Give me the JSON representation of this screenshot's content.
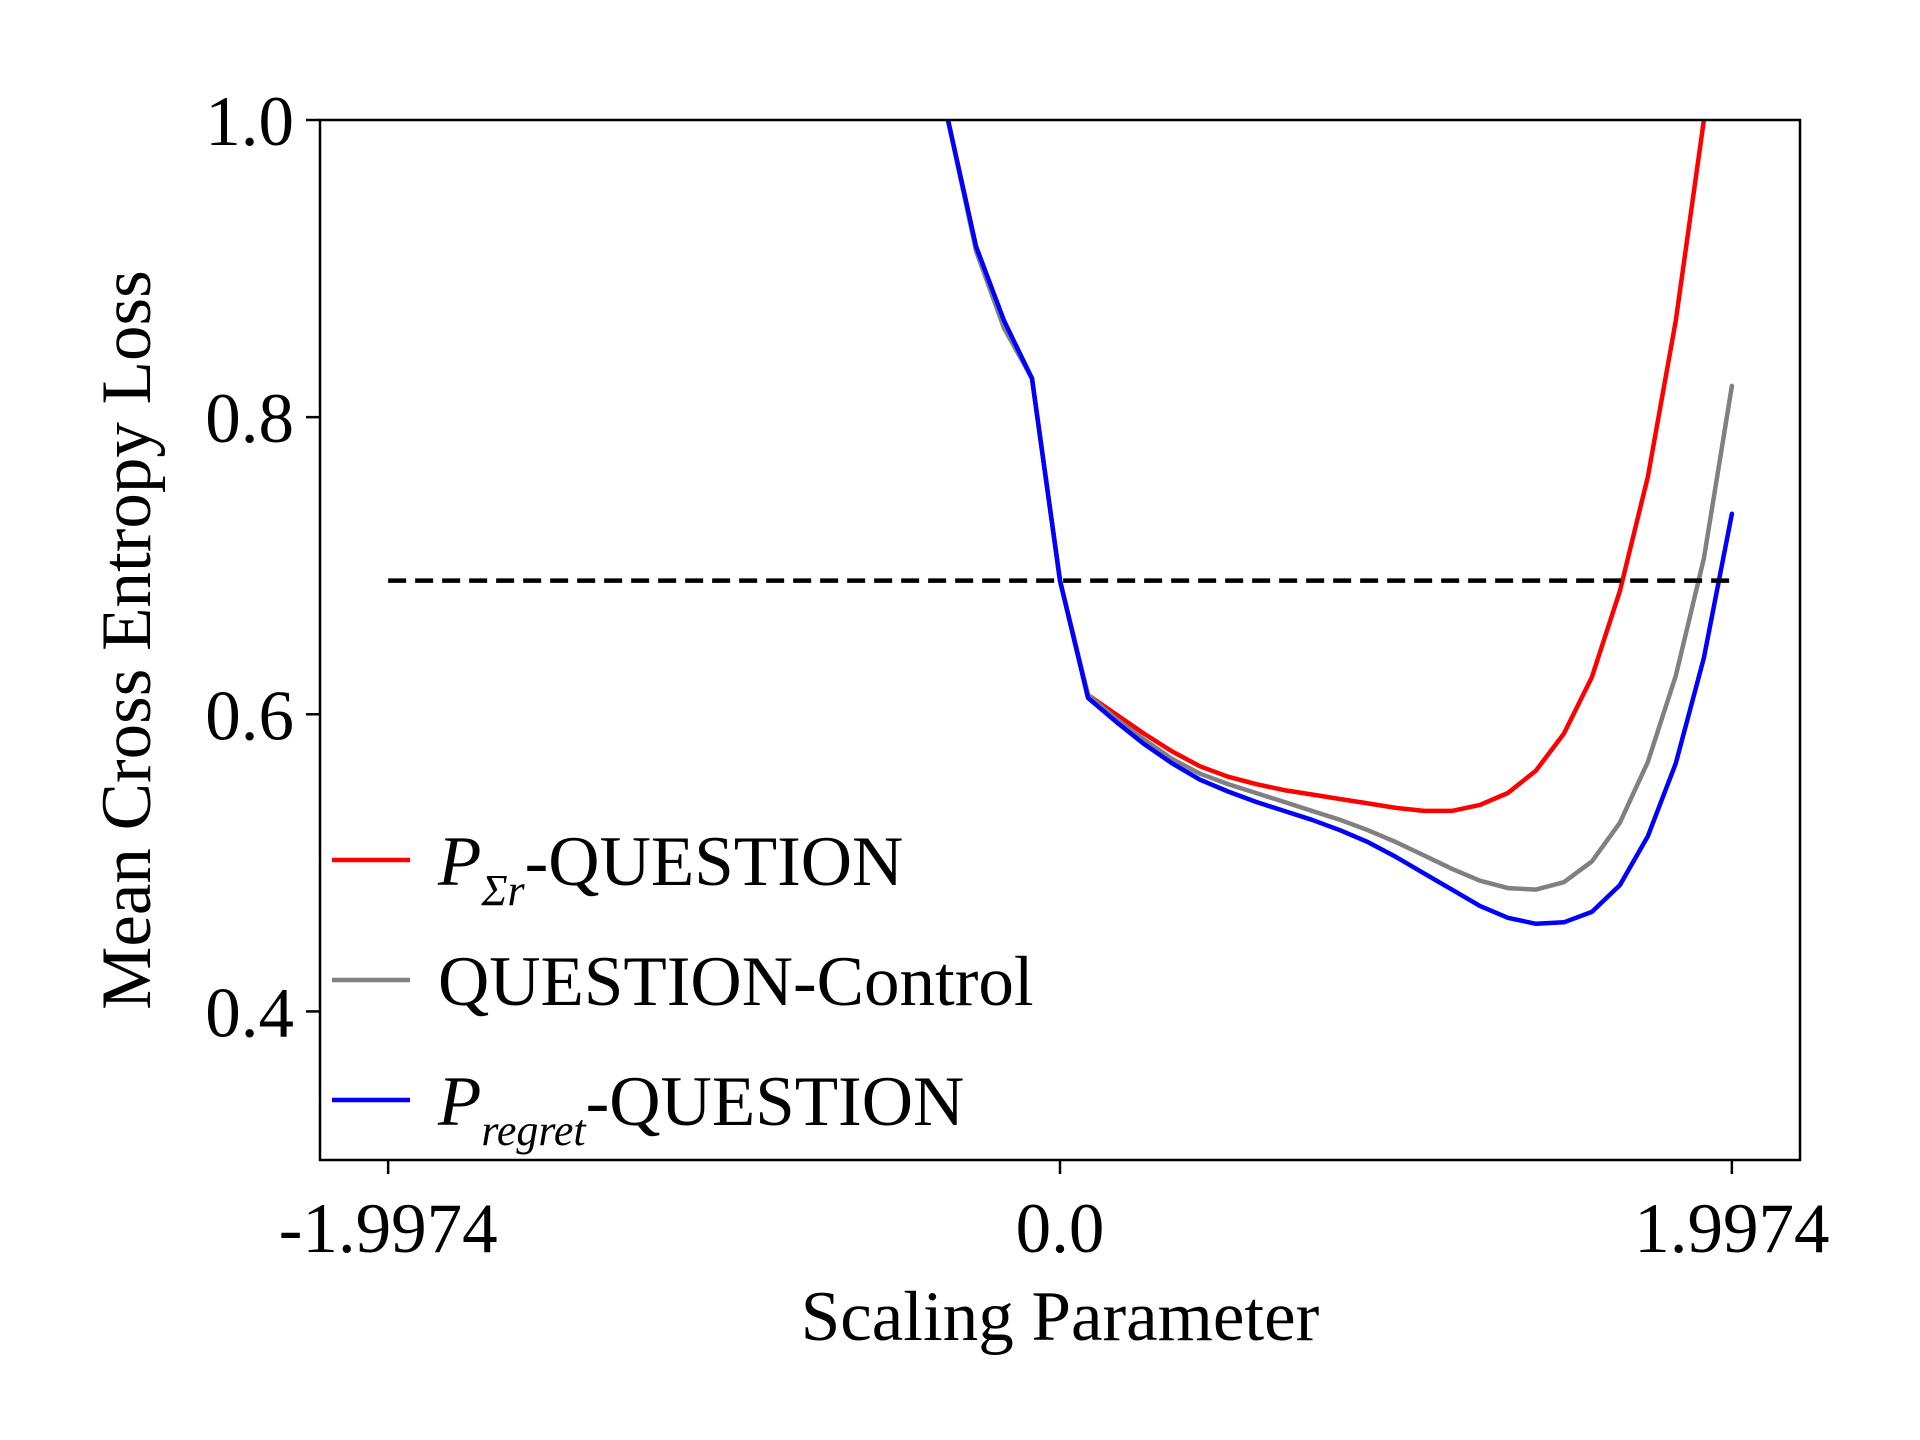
{
  "chart_data": {
    "type": "line",
    "xlabel": "Scaling Parameter",
    "ylabel": "Mean Cross Entropy Loss",
    "xlim": [
      -2.2,
      2.2
    ],
    "ylim": [
      0.3,
      1.0
    ],
    "xticks": [
      -1.9974,
      0.0,
      1.9974
    ],
    "xtick_labels": [
      "-1.9974",
      "0.0",
      "1.9974"
    ],
    "yticks": [
      0.4,
      0.6,
      0.8,
      1.0
    ],
    "ytick_labels": [
      "0.4",
      "0.6",
      "0.8",
      "1.0"
    ],
    "grid": false,
    "legend_position": "lower-left",
    "reference_line": {
      "y": 0.69,
      "x_range": [
        -1.9974,
        1.9974
      ],
      "style": "dashed",
      "color": "#000000"
    },
    "series": [
      {
        "name": "P_{Σ_r}-QUESTION",
        "legend_main": "P",
        "legend_sub": "Σr",
        "legend_suffix": "-QUESTION",
        "color": "#ff0000",
        "x": [
          -0.3329,
          -0.2497,
          -0.1665,
          -0.0832,
          0.0,
          0.0832,
          0.1665,
          0.2497,
          0.3329,
          0.4161,
          0.4994,
          0.5826,
          0.6658,
          0.749,
          0.8323,
          0.9155,
          0.9987,
          1.0819,
          1.1651,
          1.2484,
          1.3316,
          1.4148,
          1.498,
          1.5813,
          1.6645,
          1.7477,
          1.8309,
          1.9142
        ],
        "y": [
          1.0,
          0.915,
          0.862,
          0.826,
          0.69,
          0.613,
          0.6,
          0.587,
          0.575,
          0.565,
          0.558,
          0.553,
          0.549,
          0.546,
          0.543,
          0.54,
          0.537,
          0.535,
          0.535,
          0.539,
          0.547,
          0.562,
          0.587,
          0.625,
          0.683,
          0.76,
          0.865,
          1.0
        ]
      },
      {
        "name": "QUESTION-Control",
        "legend_main": "QUESTION-Control",
        "legend_sub": "",
        "legend_suffix": "",
        "color": "#808080",
        "x": [
          -0.3329,
          -0.2497,
          -0.1665,
          -0.0832,
          0.0,
          0.0832,
          0.1665,
          0.2497,
          0.3329,
          0.4161,
          0.4994,
          0.5826,
          0.6658,
          0.749,
          0.8323,
          0.9155,
          0.9987,
          1.0819,
          1.1651,
          1.2484,
          1.3316,
          1.4148,
          1.498,
          1.5813,
          1.6645,
          1.7477,
          1.8309,
          1.9142,
          1.9974
        ],
        "y": [
          1.0,
          0.912,
          0.86,
          0.826,
          0.69,
          0.613,
          0.597,
          0.583,
          0.57,
          0.56,
          0.553,
          0.547,
          0.541,
          0.535,
          0.529,
          0.522,
          0.514,
          0.505,
          0.496,
          0.488,
          0.483,
          0.482,
          0.487,
          0.501,
          0.527,
          0.568,
          0.626,
          0.705,
          0.821
        ]
      },
      {
        "name": "P_{regret}-QUESTION",
        "legend_main": "P",
        "legend_sub": "regret",
        "legend_suffix": "-QUESTION",
        "color": "#0000ff",
        "x": [
          -0.3329,
          -0.2497,
          -0.1665,
          -0.0832,
          0.0,
          0.0832,
          0.1665,
          0.2497,
          0.3329,
          0.4161,
          0.4994,
          0.5826,
          0.6658,
          0.749,
          0.8323,
          0.9155,
          0.9987,
          1.0819,
          1.1651,
          1.2484,
          1.3316,
          1.4148,
          1.498,
          1.5813,
          1.6645,
          1.7477,
          1.8309,
          1.9142,
          1.9974
        ],
        "y": [
          1.0,
          0.915,
          0.865,
          0.826,
          0.69,
          0.611,
          0.595,
          0.58,
          0.567,
          0.556,
          0.548,
          0.541,
          0.535,
          0.529,
          0.522,
          0.514,
          0.504,
          0.493,
          0.482,
          0.471,
          0.463,
          0.459,
          0.46,
          0.467,
          0.485,
          0.518,
          0.567,
          0.638,
          0.735
        ]
      }
    ]
  }
}
